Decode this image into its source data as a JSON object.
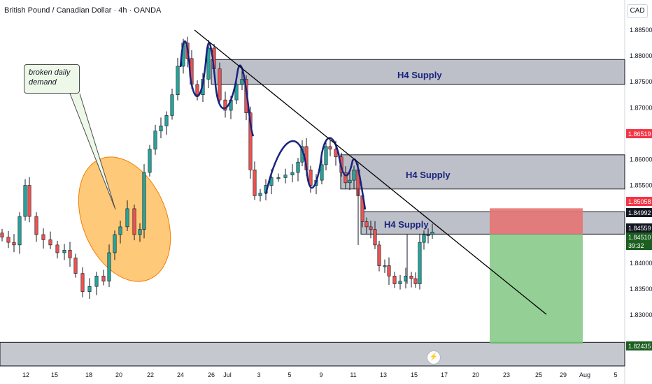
{
  "header": {
    "title": "British Pound / Canadian Dollar · 4h · OANDA",
    "currency": "CAD"
  },
  "annotation": {
    "callout_line1": "broken daily",
    "callout_line2": "demand"
  },
  "zones": [
    {
      "label": "H4 Supply",
      "low": 1.8745,
      "high": 1.8793
    },
    {
      "label": "H4 Supply",
      "low": 1.8543,
      "high": 1.8609
    },
    {
      "label": "H4 Supply",
      "low": 1.84559,
      "high": 1.84992
    }
  ],
  "colors": {
    "up": "#26a69a",
    "down": "#ef5350",
    "candle_body": "#131722",
    "zone_fill": "#b2b5be",
    "stop_zone": "#e57373",
    "target_zone": "#81c784",
    "trend_line": "#000000",
    "pattern_stroke": "#1a237e",
    "demand_ellipse": "#ffb74d"
  },
  "chart_data": {
    "type": "candlestick",
    "symbol": "GBPCAD",
    "timeframe": "4h",
    "price_ticks": [
      "1.88500",
      "1.88000",
      "1.87500",
      "1.87000",
      "1.86500",
      "1.86000",
      "1.85500",
      "1.85000",
      "1.84500",
      "1.84000",
      "1.83500",
      "1.83000"
    ],
    "ylim": [
      1.8225,
      1.8887
    ],
    "x_labels": [
      "12",
      "15",
      "18",
      "20",
      "22",
      "24",
      "26",
      "Jul",
      "3",
      "5",
      "9",
      "11",
      "13",
      "15",
      "17",
      "20",
      "23",
      "25",
      "29",
      "Aug",
      "5"
    ],
    "price_labels": [
      {
        "value": "1.86519",
        "color": "#f23645"
      },
      {
        "value": "1.85058",
        "color": "#f23645"
      },
      {
        "value": "1.84992",
        "color": "#131722"
      },
      {
        "value": "1.84559",
        "color": "#131722"
      },
      {
        "value": "1.84510",
        "color": "#1b5e20"
      },
      {
        "value": "39:32",
        "color": "#1b5e20"
      },
      {
        "value": "1.82435",
        "color": "#1b5e20"
      }
    ],
    "short_position": {
      "entry": 1.84559,
      "stop": 1.85058,
      "target": 1.82435
    },
    "trend_line": {
      "from": 1.885,
      "to": 1.8301
    }
  }
}
